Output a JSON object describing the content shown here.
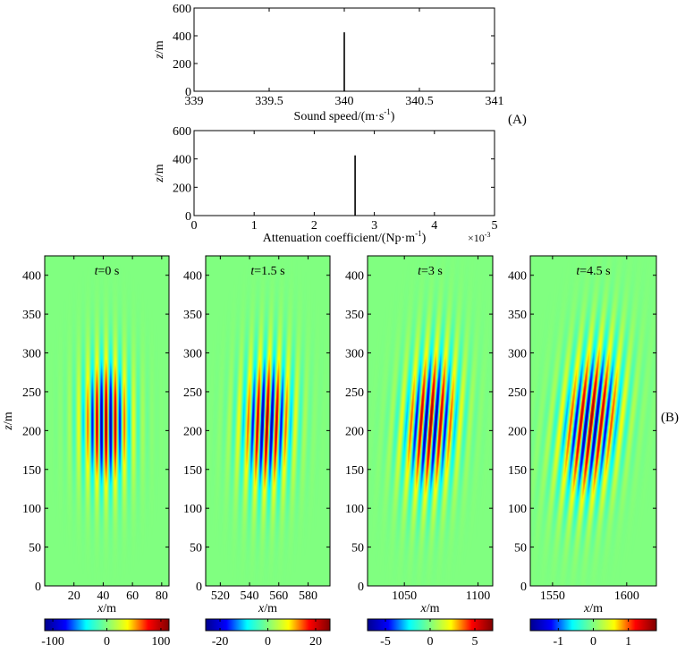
{
  "panel_labels": {
    "a": "(A)",
    "b": "(B)"
  },
  "colormap": {
    "stops": [
      "#00008f",
      "#0000ff",
      "#00ffff",
      "#80ff80",
      "#ffff00",
      "#ff0000",
      "#800000"
    ]
  },
  "chart_data": [
    {
      "type": "line",
      "id": "sound_speed",
      "xlabel": "Sound speed/(m·s",
      "xlabel_sup": "-1",
      "xlabel_end": ")",
      "ylabel": "z/m",
      "xlim": [
        339,
        341
      ],
      "ylim": [
        0,
        600
      ],
      "xticks": [
        339,
        339.5,
        340,
        340.5,
        341
      ],
      "xtick_labels": [
        "339",
        "339.5",
        "340",
        "340.5",
        "341"
      ],
      "yticks": [
        0,
        200,
        400,
        600
      ],
      "ytick_labels": [
        "0",
        "200",
        "400",
        "600"
      ],
      "x": [
        340,
        340
      ],
      "y": [
        0,
        425
      ]
    },
    {
      "type": "line",
      "id": "attenuation",
      "xlabel": "Attenuation coefficient/(Np·m",
      "xlabel_sup": "-1",
      "xlabel_end": ")",
      "ylabel": "z/m",
      "x_multiplier": "×10",
      "x_multiplier_exp": "-3",
      "xlim": [
        0,
        5
      ],
      "ylim": [
        0,
        600
      ],
      "xticks": [
        0,
        1,
        2,
        3,
        4,
        5
      ],
      "xtick_labels": [
        "0",
        "1",
        "2",
        "3",
        "4",
        "5"
      ],
      "yticks": [
        0,
        200,
        400,
        600
      ],
      "ytick_labels": [
        "0",
        "200",
        "400",
        "600"
      ],
      "x": [
        2.68,
        2.68
      ],
      "y": [
        0,
        425
      ]
    },
    {
      "type": "heatmap",
      "id": "t0",
      "title_var": "t",
      "title": "=0 s",
      "xlabel": "x/m",
      "ylabel": "z/m",
      "xlim": [
        0,
        85
      ],
      "ylim": [
        0,
        425
      ],
      "xticks": [
        20,
        40,
        60,
        80
      ],
      "yticks": [
        0,
        50,
        100,
        150,
        200,
        250,
        300,
        350,
        400
      ],
      "packet": {
        "x_center": 42,
        "z_center": 210,
        "x_width": 12,
        "z_width": 58,
        "wavelength": 6.3,
        "tilt": 0.0
      },
      "clim": [
        -115,
        115
      ],
      "cbar_ticks": [
        -100,
        0,
        100
      ],
      "cbar_labels": [
        "-100",
        "0",
        "100"
      ]
    },
    {
      "type": "heatmap",
      "id": "t1_5",
      "title_var": "t",
      "title": "=1.5 s",
      "xlabel": "x/m",
      "ylabel": "",
      "xlim": [
        510,
        595
      ],
      "ylim": [
        0,
        425
      ],
      "xticks": [
        520,
        540,
        560,
        580
      ],
      "yticks": [
        0,
        50,
        100,
        150,
        200,
        250,
        300,
        350,
        400
      ],
      "packet": {
        "x_center": 552,
        "z_center": 210,
        "x_width": 12.5,
        "z_width": 62,
        "wavelength": 6.5,
        "tilt": 0.02
      },
      "clim": [
        -26,
        26
      ],
      "cbar_ticks": [
        -20,
        0,
        20
      ],
      "cbar_labels": [
        "-20",
        "0",
        "20"
      ]
    },
    {
      "type": "heatmap",
      "id": "t3",
      "title_var": "t",
      "title": "=3 s",
      "xlabel": "x/m",
      "ylabel": "",
      "xlim": [
        1025,
        1110
      ],
      "ylim": [
        0,
        425
      ],
      "xticks": [
        1050,
        1100
      ],
      "yticks": [
        0,
        50,
        100,
        150,
        200,
        250,
        300,
        350,
        400
      ],
      "packet": {
        "x_center": 1068,
        "z_center": 210,
        "x_width": 13,
        "z_width": 66,
        "wavelength": 6.7,
        "tilt": 0.04
      },
      "clim": [
        -7,
        7
      ],
      "cbar_ticks": [
        -5,
        0,
        5
      ],
      "cbar_labels": [
        "-5",
        "0",
        "5"
      ]
    },
    {
      "type": "heatmap",
      "id": "t4_5",
      "title_var": "t",
      "title": "=4.5 s",
      "xlabel": "x/m",
      "ylabel": "",
      "xlim": [
        1535,
        1620
      ],
      "ylim": [
        0,
        425
      ],
      "xticks": [
        1550,
        1600
      ],
      "yticks": [
        0,
        50,
        100,
        150,
        200,
        250,
        300,
        350,
        400
      ],
      "packet": {
        "x_center": 1576,
        "z_center": 210,
        "x_width": 14,
        "z_width": 70,
        "wavelength": 6.9,
        "tilt": 0.06
      },
      "clim": [
        -1.8,
        1.8
      ],
      "cbar_ticks": [
        -1,
        0,
        1
      ],
      "cbar_labels": [
        "-1",
        "0",
        "1"
      ]
    }
  ]
}
